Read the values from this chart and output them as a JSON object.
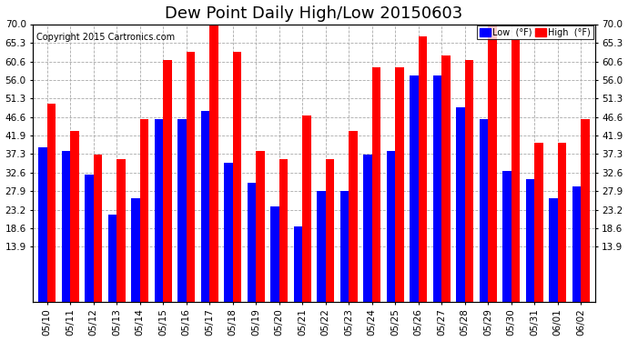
{
  "title": "Dew Point Daily High/Low 20150603",
  "copyright": "Copyright 2015 Cartronics.com",
  "background_color": "#ffffff",
  "plot_bg_color": "#ffffff",
  "dates": [
    "05/10",
    "05/11",
    "05/12",
    "05/13",
    "05/14",
    "05/15",
    "05/16",
    "05/17",
    "05/18",
    "05/19",
    "05/20",
    "05/21",
    "05/22",
    "05/23",
    "05/24",
    "05/25",
    "05/26",
    "05/27",
    "05/28",
    "05/29",
    "05/30",
    "05/31",
    "06/01",
    "06/02"
  ],
  "low": [
    39,
    38,
    32,
    22,
    26,
    46,
    46,
    48,
    35,
    30,
    24,
    19,
    28,
    28,
    37,
    38,
    57,
    57,
    49,
    46,
    33,
    31,
    26,
    29
  ],
  "high": [
    50,
    43,
    37,
    36,
    46,
    61,
    63,
    70,
    63,
    38,
    36,
    47,
    36,
    43,
    59,
    59,
    67,
    62,
    61,
    70,
    66,
    40,
    40,
    46
  ],
  "low_color": "#0000ff",
  "high_color": "#ff0000",
  "grid_color": "#aaaaaa",
  "ytick_values": [
    13.9,
    18.6,
    23.2,
    27.9,
    32.6,
    37.3,
    41.9,
    46.6,
    51.3,
    56.0,
    60.6,
    65.3,
    70.0
  ],
  "ytick_labels": [
    "13.9",
    "18.6",
    "23.2",
    "27.9",
    "32.6",
    "37.3",
    "41.9",
    "46.6",
    "51.3",
    "56.0",
    "60.6",
    "65.3",
    "70.0"
  ],
  "ymin": 0,
  "ymax": 70.0,
  "title_fontsize": 13,
  "tick_fontsize": 7.5,
  "legend_low_label": "Low  (°F)",
  "legend_high_label": "High  (°F)",
  "bar_width": 0.38
}
